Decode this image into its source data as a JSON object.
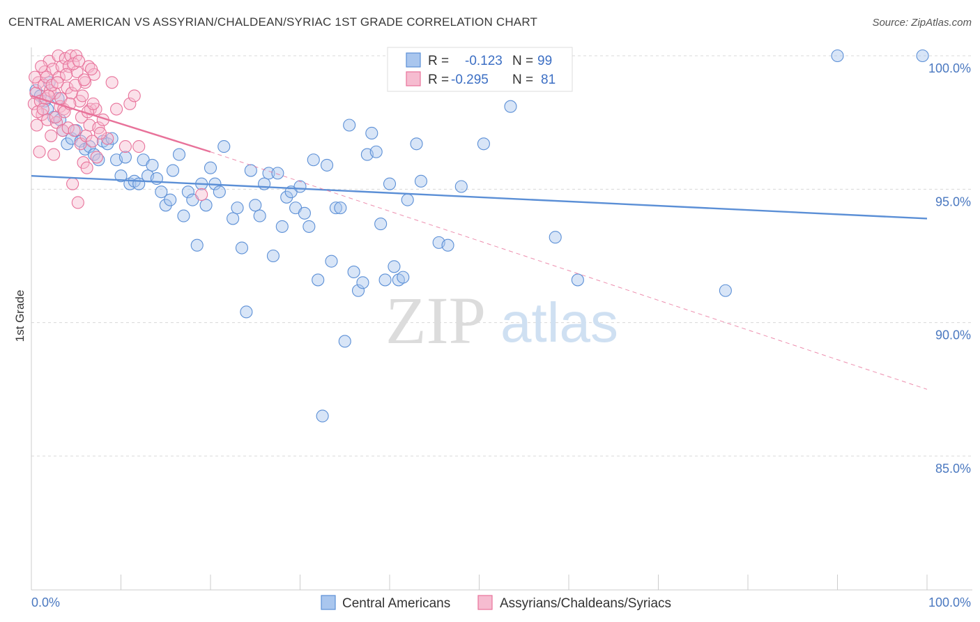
{
  "chart_data": {
    "type": "scatter",
    "title": "CENTRAL AMERICAN VS ASSYRIAN/CHALDEAN/SYRIAC 1ST GRADE CORRELATION CHART",
    "source": "Source: ZipAtlas.com",
    "ylabel": "1st Grade",
    "xlim": [
      0,
      100
    ],
    "ylim": [
      80.5,
      100.7
    ],
    "x_tick_labels": [
      "0.0%",
      "100.0%"
    ],
    "y_ticks": [
      100,
      95,
      90,
      85
    ],
    "y_tick_labels": [
      "100.0%",
      "95.0%",
      "90.0%",
      "85.0%"
    ],
    "grid": "horizontal dashed",
    "watermark": {
      "zip": "ZIP",
      "atlas": "atlas"
    },
    "legend_stats": [
      {
        "r_label": "R =",
        "r_value": "-0.123",
        "n_label": "N =",
        "n_value": "99"
      },
      {
        "r_label": "R =",
        "r_value": "-0.295",
        "n_label": "N =",
        "n_value": "81"
      }
    ],
    "series": [
      {
        "name": "Central Americans",
        "color": "#5b8fd6",
        "fill": "#a9c6ee",
        "trend": {
          "x": [
            0,
            100
          ],
          "y": [
            95.5,
            93.9
          ],
          "style": "solid"
        },
        "points": [
          [
            1.5,
            98.3
          ],
          [
            2.5,
            97.7
          ],
          [
            3.2,
            97.6
          ],
          [
            4.0,
            96.7
          ],
          [
            4.5,
            96.9
          ],
          [
            5.0,
            97.2
          ],
          [
            5.5,
            96.8
          ],
          [
            6.0,
            96.5
          ],
          [
            6.5,
            96.6
          ],
          [
            7.0,
            96.3
          ],
          [
            7.5,
            96.1
          ],
          [
            8.0,
            96.8
          ],
          [
            8.5,
            96.7
          ],
          [
            9.0,
            96.9
          ],
          [
            9.5,
            96.1
          ],
          [
            10.0,
            95.5
          ],
          [
            10.5,
            96.2
          ],
          [
            11.0,
            95.2
          ],
          [
            11.5,
            95.3
          ],
          [
            12.0,
            95.2
          ],
          [
            12.5,
            96.1
          ],
          [
            13.0,
            95.5
          ],
          [
            13.5,
            95.9
          ],
          [
            14.0,
            95.4
          ],
          [
            14.5,
            94.9
          ],
          [
            15.0,
            94.4
          ],
          [
            15.5,
            94.6
          ],
          [
            15.8,
            95.7
          ],
          [
            16.5,
            96.3
          ],
          [
            17.0,
            94.0
          ],
          [
            17.5,
            94.9
          ],
          [
            18.0,
            94.6
          ],
          [
            18.5,
            92.9
          ],
          [
            19.0,
            95.2
          ],
          [
            19.5,
            94.4
          ],
          [
            20.0,
            95.8
          ],
          [
            20.5,
            95.2
          ],
          [
            21.0,
            94.9
          ],
          [
            21.5,
            96.6
          ],
          [
            22.5,
            93.9
          ],
          [
            23.0,
            94.3
          ],
          [
            23.5,
            92.8
          ],
          [
            24.0,
            90.4
          ],
          [
            24.5,
            95.7
          ],
          [
            25.0,
            94.4
          ],
          [
            25.5,
            94.0
          ],
          [
            26.0,
            95.2
          ],
          [
            26.5,
            95.6
          ],
          [
            27.0,
            92.5
          ],
          [
            27.5,
            95.6
          ],
          [
            28.0,
            93.6
          ],
          [
            28.5,
            94.7
          ],
          [
            29.0,
            94.9
          ],
          [
            29.5,
            94.3
          ],
          [
            30.0,
            95.1
          ],
          [
            30.5,
            94.1
          ],
          [
            31.0,
            93.6
          ],
          [
            31.5,
            96.1
          ],
          [
            32.0,
            91.6
          ],
          [
            32.5,
            86.5
          ],
          [
            33.0,
            95.9
          ],
          [
            33.5,
            92.3
          ],
          [
            34.0,
            94.3
          ],
          [
            34.5,
            94.3
          ],
          [
            35.0,
            89.3
          ],
          [
            35.5,
            97.4
          ],
          [
            36.0,
            91.9
          ],
          [
            36.5,
            91.2
          ],
          [
            37.0,
            91.5
          ],
          [
            37.5,
            96.3
          ],
          [
            38.0,
            97.1
          ],
          [
            38.5,
            96.4
          ],
          [
            39.0,
            93.7
          ],
          [
            39.5,
            91.6
          ],
          [
            40.0,
            95.2
          ],
          [
            40.5,
            92.1
          ],
          [
            41.0,
            91.6
          ],
          [
            41.5,
            91.7
          ],
          [
            42.0,
            94.6
          ],
          [
            43.0,
            96.7
          ],
          [
            43.5,
            95.3
          ],
          [
            45.5,
            93.0
          ],
          [
            46.5,
            92.9
          ],
          [
            48.0,
            95.1
          ],
          [
            50.5,
            96.7
          ],
          [
            52.0,
            100.0
          ],
          [
            53.5,
            98.1
          ],
          [
            57.5,
            100.0
          ],
          [
            58.5,
            93.2
          ],
          [
            61.0,
            91.6
          ],
          [
            77.5,
            91.2
          ],
          [
            90.0,
            100.0
          ],
          [
            99.5,
            100.0
          ],
          [
            0.5,
            98.7
          ],
          [
            1.0,
            98.5
          ],
          [
            1.8,
            98.0
          ],
          [
            2.0,
            99.0
          ],
          [
            3.0,
            98.4
          ],
          [
            3.5,
            97.2
          ]
        ]
      },
      {
        "name": "Assyrians/Chaldeans/Syriacs",
        "color": "#e8729a",
        "fill": "#f6bcd0",
        "trend": {
          "x": [
            0,
            20
          ],
          "y": [
            98.5,
            96.4
          ],
          "style": "solid",
          "extended": {
            "x": [
              20,
              100
            ],
            "y": [
              96.4,
              87.5
            ],
            "style": "dashed"
          }
        },
        "points": [
          [
            0.3,
            98.2
          ],
          [
            0.5,
            98.6
          ],
          [
            0.6,
            97.4
          ],
          [
            0.8,
            99.0
          ],
          [
            1.0,
            98.3
          ],
          [
            1.2,
            97.8
          ],
          [
            1.4,
            98.9
          ],
          [
            1.5,
            99.4
          ],
          [
            1.6,
            98.4
          ],
          [
            1.8,
            97.6
          ],
          [
            2.0,
            99.8
          ],
          [
            2.1,
            98.7
          ],
          [
            2.2,
            97.0
          ],
          [
            2.4,
            99.5
          ],
          [
            2.5,
            96.3
          ],
          [
            2.6,
            98.6
          ],
          [
            2.8,
            97.5
          ],
          [
            3.0,
            100.0
          ],
          [
            3.1,
            99.2
          ],
          [
            3.2,
            98.1
          ],
          [
            3.4,
            99.6
          ],
          [
            3.5,
            97.2
          ],
          [
            3.6,
            98.0
          ],
          [
            3.8,
            99.9
          ],
          [
            4.0,
            98.8
          ],
          [
            4.1,
            97.3
          ],
          [
            4.2,
            99.6
          ],
          [
            4.4,
            100.0
          ],
          [
            4.5,
            98.6
          ],
          [
            4.6,
            95.2
          ],
          [
            4.8,
            97.2
          ],
          [
            5.0,
            100.0
          ],
          [
            5.1,
            99.4
          ],
          [
            5.2,
            94.5
          ],
          [
            5.4,
            98.3
          ],
          [
            5.5,
            96.7
          ],
          [
            5.6,
            97.7
          ],
          [
            5.8,
            96.0
          ],
          [
            6.0,
            99.0
          ],
          [
            6.1,
            97.0
          ],
          [
            6.2,
            95.8
          ],
          [
            6.4,
            99.6
          ],
          [
            6.5,
            97.4
          ],
          [
            6.6,
            98.0
          ],
          [
            6.8,
            96.8
          ],
          [
            7.0,
            99.3
          ],
          [
            7.2,
            98.0
          ],
          [
            7.5,
            97.3
          ],
          [
            8.0,
            97.6
          ],
          [
            8.5,
            96.9
          ],
          [
            9.0,
            99.0
          ],
          [
            9.5,
            98.0
          ],
          [
            10.5,
            96.6
          ],
          [
            11.0,
            98.2
          ],
          [
            11.5,
            98.5
          ],
          [
            12.0,
            96.6
          ],
          [
            19.0,
            94.8
          ],
          [
            0.4,
            99.2
          ],
          [
            0.7,
            97.9
          ],
          [
            0.9,
            96.4
          ],
          [
            1.1,
            99.6
          ],
          [
            1.3,
            98.0
          ],
          [
            1.7,
            99.2
          ],
          [
            1.9,
            98.5
          ],
          [
            2.3,
            98.9
          ],
          [
            2.7,
            97.7
          ],
          [
            2.9,
            99.0
          ],
          [
            3.3,
            98.4
          ],
          [
            3.7,
            97.9
          ],
          [
            3.9,
            99.3
          ],
          [
            4.3,
            98.2
          ],
          [
            4.7,
            99.7
          ],
          [
            4.9,
            98.9
          ],
          [
            5.3,
            99.8
          ],
          [
            5.7,
            98.5
          ],
          [
            5.9,
            99.1
          ],
          [
            6.3,
            97.9
          ],
          [
            6.7,
            99.5
          ],
          [
            6.9,
            98.2
          ],
          [
            7.3,
            96.2
          ],
          [
            7.7,
            97.1
          ]
        ]
      }
    ]
  }
}
